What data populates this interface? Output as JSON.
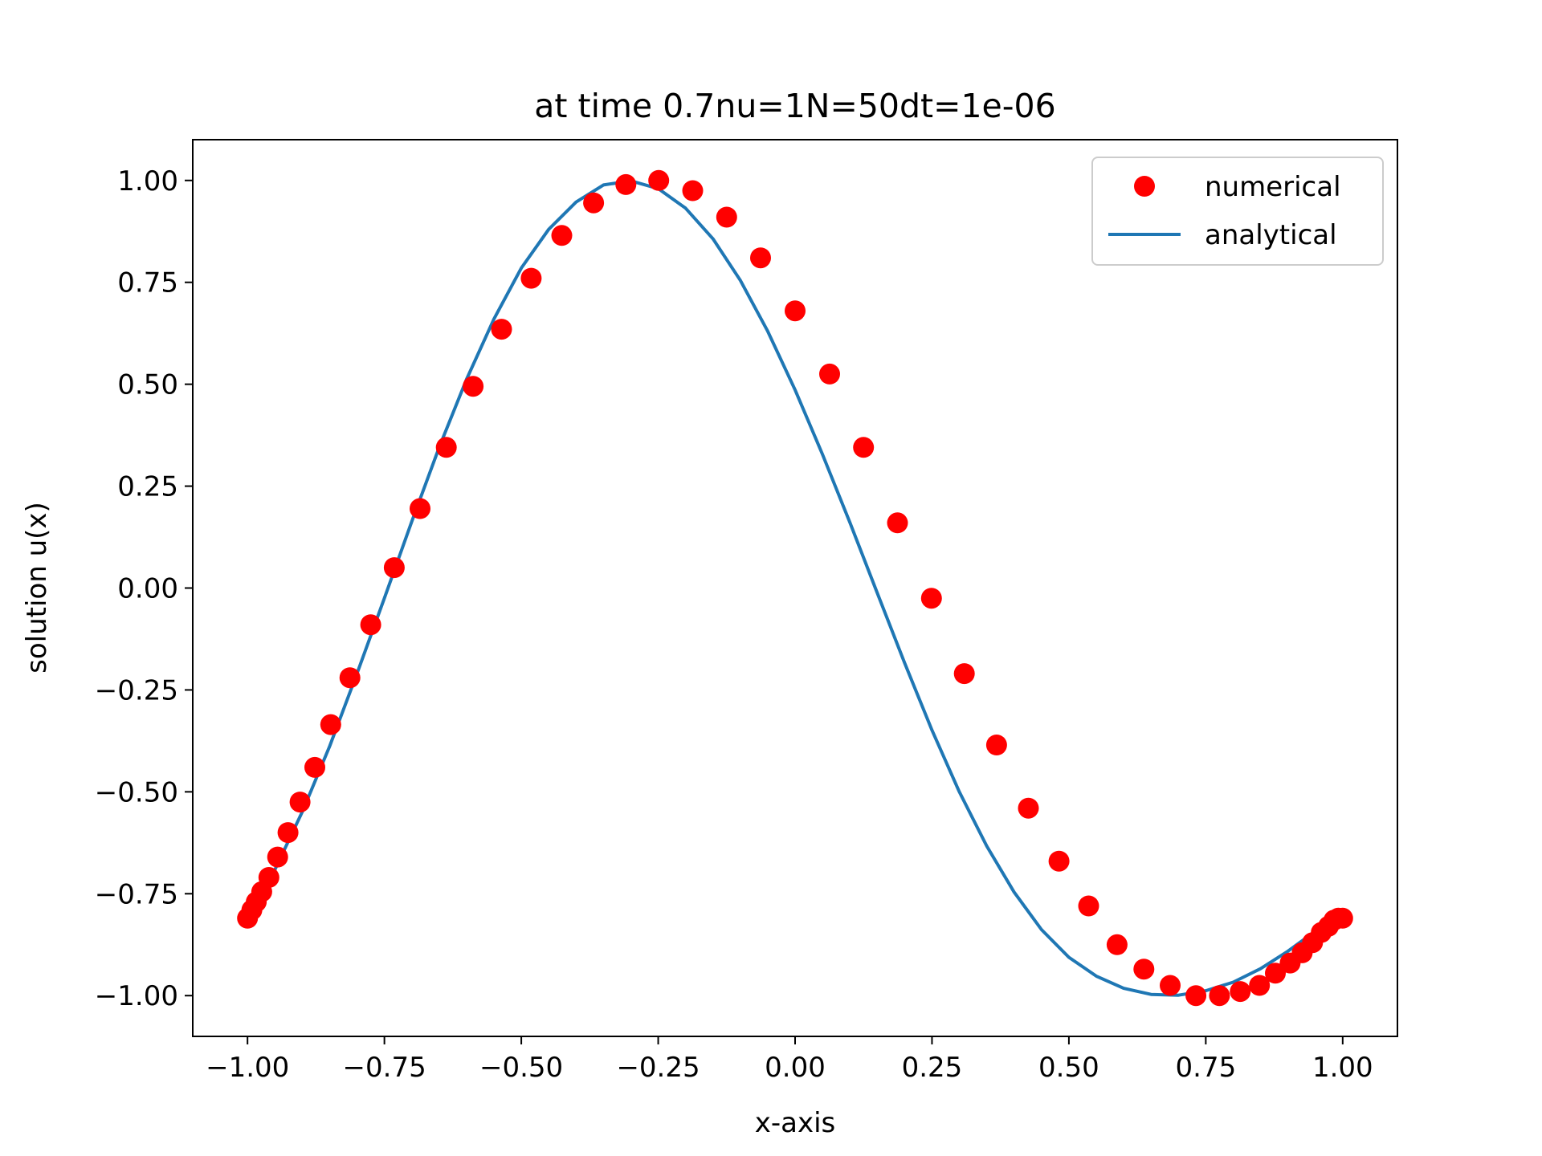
{
  "chart_data": {
    "type": "scatter",
    "title": "at time 0.7nu=1N=50dt=1e-06",
    "xlabel": "x-axis",
    "ylabel": "solution u(x)",
    "xlim": [
      -1.1,
      1.1
    ],
    "ylim": [
      -1.1,
      1.1
    ],
    "xticks": [
      -1.0,
      -0.75,
      -0.5,
      -0.25,
      0.0,
      0.25,
      0.5,
      0.75,
      1.0
    ],
    "xtick_labels": [
      "−1.00",
      "−0.75",
      "−0.50",
      "−0.25",
      "0.00",
      "0.25",
      "0.50",
      "0.75",
      "1.00"
    ],
    "yticks": [
      1.0,
      0.75,
      0.5,
      0.25,
      0.0,
      -0.25,
      -0.5,
      -0.75,
      -1.0
    ],
    "ytick_labels": [
      "1.00",
      "0.75",
      "0.50",
      "0.25",
      "0.00",
      "−0.25",
      "−0.50",
      "−0.75",
      "−1.00"
    ],
    "grid": false,
    "legend_position": "top-right",
    "series": [
      {
        "name": "numerical",
        "kind": "scatter",
        "color": "#ff0000",
        "x": [
          -1.0,
          -0.992,
          -0.984,
          -0.974,
          -0.961,
          -0.945,
          -0.926,
          -0.904,
          -0.877,
          -0.848,
          -0.813,
          -0.775,
          -0.732,
          -0.685,
          -0.637,
          -0.588,
          -0.536,
          -0.482,
          -0.426,
          -0.368,
          -0.309,
          -0.249,
          -0.187,
          -0.125,
          -0.063,
          0.0,
          0.063,
          0.125,
          0.187,
          0.249,
          0.309,
          0.368,
          0.426,
          0.482,
          0.536,
          0.588,
          0.637,
          0.685,
          0.732,
          0.775,
          0.813,
          0.848,
          0.877,
          0.904,
          0.926,
          0.945,
          0.961,
          0.974,
          0.984,
          0.992,
          1.0
        ],
        "y": [
          -0.81,
          -0.79,
          -0.77,
          -0.745,
          -0.71,
          -0.66,
          -0.6,
          -0.525,
          -0.44,
          -0.335,
          -0.22,
          -0.09,
          0.05,
          0.195,
          0.345,
          0.495,
          0.635,
          0.76,
          0.865,
          0.945,
          0.99,
          1.0,
          0.975,
          0.91,
          0.81,
          0.68,
          0.525,
          0.345,
          0.16,
          -0.025,
          -0.21,
          -0.385,
          -0.54,
          -0.67,
          -0.78,
          -0.875,
          -0.935,
          -0.975,
          -1.0,
          -1.0,
          -0.99,
          -0.975,
          -0.945,
          -0.92,
          -0.895,
          -0.87,
          -0.845,
          -0.83,
          -0.815,
          -0.81,
          -0.81
        ]
      },
      {
        "name": "analytical",
        "kind": "line",
        "color": "#1f77b4",
        "x": [
          -1.0,
          -0.95,
          -0.9,
          -0.85,
          -0.8,
          -0.75,
          -0.7,
          -0.65,
          -0.6,
          -0.55,
          -0.5,
          -0.45,
          -0.4,
          -0.35,
          -0.3,
          -0.25,
          -0.2,
          -0.15,
          -0.1,
          -0.05,
          0.0,
          0.05,
          0.1,
          0.15,
          0.2,
          0.25,
          0.3,
          0.35,
          0.4,
          0.45,
          0.5,
          0.55,
          0.6,
          0.65,
          0.7,
          0.75,
          0.8,
          0.85,
          0.9,
          0.95,
          1.0
        ],
        "y": [
          -0.81,
          -0.691,
          -0.549,
          -0.388,
          -0.21,
          -0.025,
          0.163,
          0.345,
          0.512,
          0.66,
          0.785,
          0.88,
          0.947,
          0.989,
          0.999,
          0.98,
          0.932,
          0.857,
          0.755,
          0.63,
          0.486,
          0.328,
          0.161,
          -0.012,
          -0.184,
          -0.349,
          -0.5,
          -0.633,
          -0.746,
          -0.838,
          -0.906,
          -0.952,
          -0.982,
          -0.997,
          -0.999,
          -0.988,
          -0.967,
          -0.934,
          -0.891,
          -0.842,
          -0.81
        ]
      }
    ]
  }
}
